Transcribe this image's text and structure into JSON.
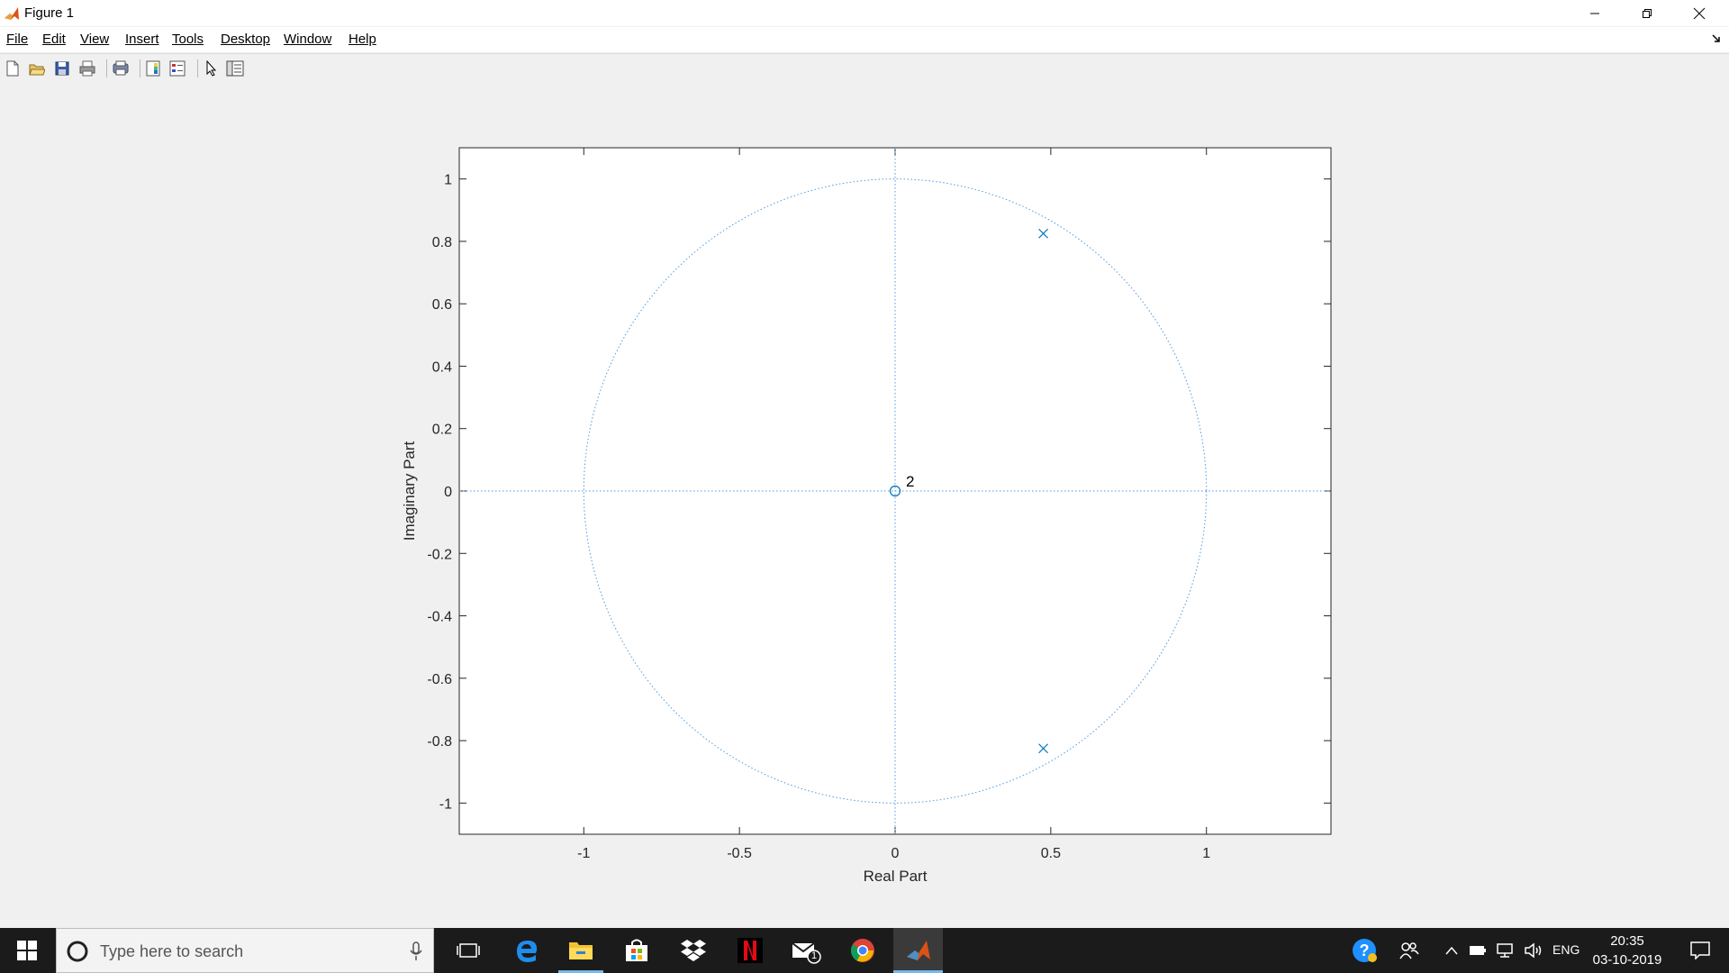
{
  "window": {
    "title": "Figure 1",
    "icon": "matlab-icon",
    "controls": [
      "minimize-icon",
      "restore-icon",
      "close-icon"
    ]
  },
  "menu": [
    {
      "label": "File"
    },
    {
      "label": "Edit"
    },
    {
      "label": "View"
    },
    {
      "label": "Insert"
    },
    {
      "label": "Tools"
    },
    {
      "label": "Desktop"
    },
    {
      "label": "Window"
    },
    {
      "label": "Help"
    }
  ],
  "toolbar": {
    "buttons": [
      "new-figure-icon",
      "open-file-icon",
      "save-icon",
      "print-icon",
      "print-preview-icon",
      "colorbar-icon",
      "legend-icon",
      "edit-plot-arrow-icon",
      "property-inspector-icon"
    ]
  },
  "chart_data": {
    "type": "scatter",
    "title": "",
    "xlabel": "Real Part",
    "ylabel": "Imaginary Part",
    "xlim": [
      -1.4,
      1.4
    ],
    "ylim": [
      -1.1,
      1.1
    ],
    "xticks": [
      "-1",
      "-0.5",
      "0",
      "0.5",
      "1"
    ],
    "xtick_values": [
      -1,
      -0.5,
      0,
      0.5,
      1
    ],
    "yticks": [
      "-1",
      "-0.8",
      "-0.6",
      "-0.4",
      "-0.2",
      "0",
      "0.2",
      "0.4",
      "0.6",
      "0.8",
      "1"
    ],
    "ytick_values": [
      -1,
      -0.8,
      -0.6,
      -0.4,
      -0.2,
      0,
      0.2,
      0.4,
      0.6,
      0.8,
      1
    ],
    "unit_circle": true,
    "grid": false,
    "zeros": [
      {
        "x": 0,
        "y": 0,
        "multiplicity_label": "2"
      }
    ],
    "poles": [
      {
        "x": 0.476,
        "y": 0.825
      },
      {
        "x": 0.476,
        "y": -0.825
      }
    ],
    "marker_color": "#0072bd",
    "guide_color": "#4d9be0"
  },
  "taskbar": {
    "search_placeholder": "Type here to search",
    "time": "20:35",
    "date": "03-10-2019",
    "language": "ENG",
    "mail_badge": "1"
  }
}
